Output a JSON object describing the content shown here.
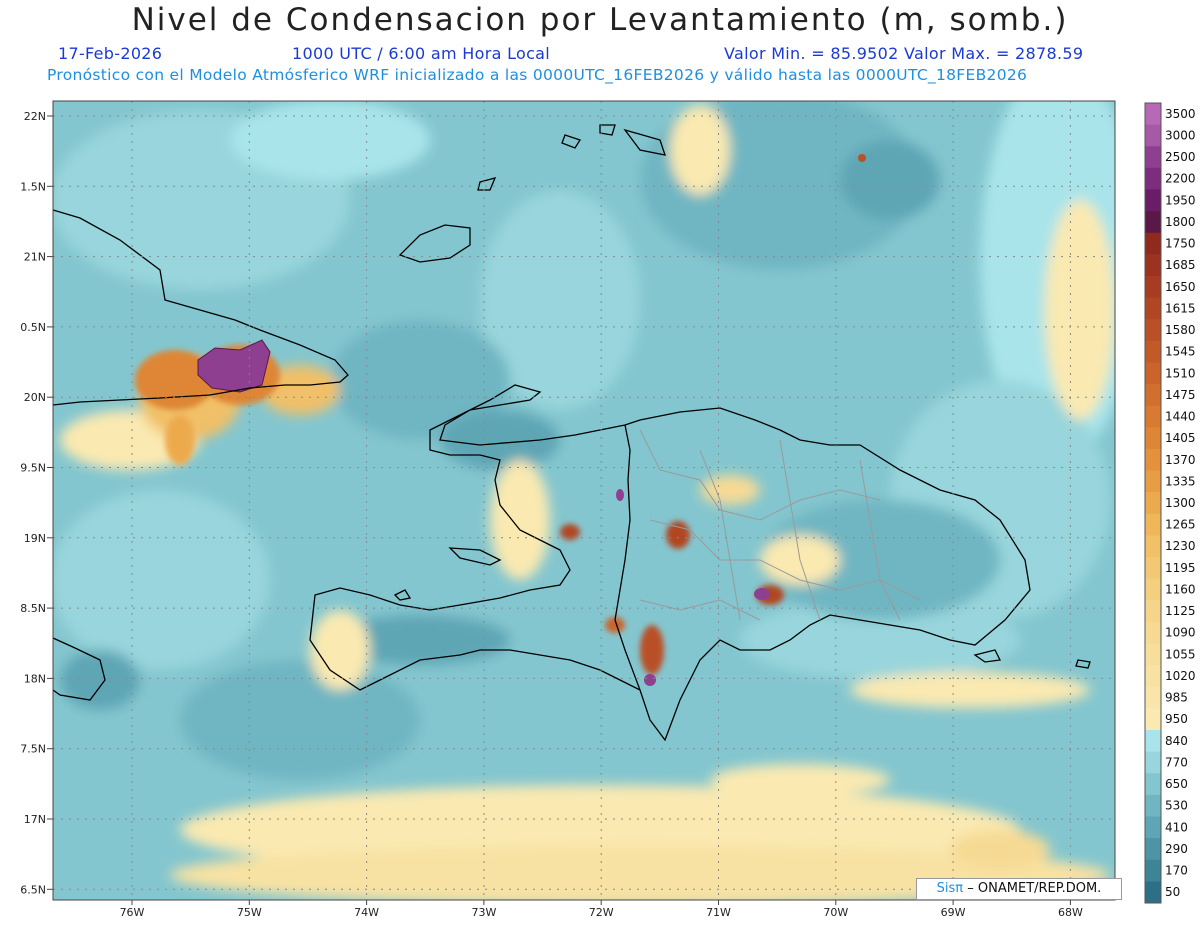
{
  "title": "Nivel de Condensacion por Levantamiento (m, somb.)",
  "date": "17-Feb-2026",
  "time": "1000 UTC / 6:00 am Hora Local",
  "minmax": "Valor Min. = 85.9502   Valor Max. = 2878.59",
  "model_line": "Pronóstico con el Modelo Atmósferico WRF inicializado a las 0000UTC_16FEB2026 y válido hasta las  0000UTC_18FEB2026",
  "credit": {
    "sis": "Sisπ",
    "rest": "– ONAMET/REP.DOM."
  },
  "lat_labels": [
    "22N",
    "1.5N",
    "21N",
    "0.5N",
    "20N",
    "9.5N",
    "19N",
    "8.5N",
    "18N",
    "7.5N",
    "17N",
    "6.5N"
  ],
  "lon_labels": [
    "76W",
    "75W",
    "74W",
    "73W",
    "72W",
    "71W",
    "70W",
    "69W",
    "68W"
  ],
  "colorbar": [
    {
      "label": "3500",
      "color": "#b869b6"
    },
    {
      "label": "3000",
      "color": "#a65aa6"
    },
    {
      "label": "2500",
      "color": "#8f3f8f"
    },
    {
      "label": "2200",
      "color": "#7d2c7e"
    },
    {
      "label": "1950",
      "color": "#6a1c67"
    },
    {
      "label": "1800",
      "color": "#5a1848"
    },
    {
      "label": "1750",
      "color": "#8f2a1c"
    },
    {
      "label": "1685",
      "color": "#9c3320"
    },
    {
      "label": "1650",
      "color": "#a63c22"
    },
    {
      "label": "1615",
      "color": "#b04624"
    },
    {
      "label": "1580",
      "color": "#b95026"
    },
    {
      "label": "1545",
      "color": "#c25a28"
    },
    {
      "label": "1510",
      "color": "#ca642b"
    },
    {
      "label": "1475",
      "color": "#d16f2e"
    },
    {
      "label": "1440",
      "color": "#d87a31"
    },
    {
      "label": "1405",
      "color": "#de8636"
    },
    {
      "label": "1370",
      "color": "#e3913c"
    },
    {
      "label": "1335",
      "color": "#e89c43"
    },
    {
      "label": "1300",
      "color": "#ecaa4e"
    },
    {
      "label": "1265",
      "color": "#efb65a"
    },
    {
      "label": "1230",
      "color": "#f1c067"
    },
    {
      "label": "1195",
      "color": "#f3c874"
    },
    {
      "label": "1160",
      "color": "#f4cf80"
    },
    {
      "label": "1125",
      "color": "#f5d58b"
    },
    {
      "label": "1090",
      "color": "#f6da94"
    },
    {
      "label": "1055",
      "color": "#f7de9c"
    },
    {
      "label": "1020",
      "color": "#f8e2a3"
    },
    {
      "label": "985",
      "color": "#f9e5a9"
    },
    {
      "label": "950",
      "color": "#fae9b1"
    },
    {
      "label": "840",
      "color": "#a9e4ea"
    },
    {
      "label": "770",
      "color": "#98d5dc"
    },
    {
      "label": "650",
      "color": "#84c6cf"
    },
    {
      "label": "530",
      "color": "#70b6c2"
    },
    {
      "label": "410",
      "color": "#5ea6b5"
    },
    {
      "label": "290",
      "color": "#4d95a6"
    },
    {
      "label": "170",
      "color": "#3d8496"
    },
    {
      "label": "50",
      "color": "#2d7086"
    }
  ]
}
